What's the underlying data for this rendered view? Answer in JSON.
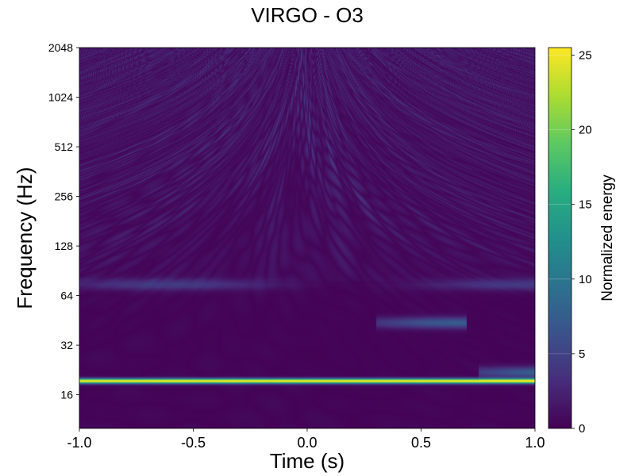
{
  "chart_data": {
    "type": "heatmap",
    "title": "VIRGO - O3",
    "xlabel": "Time (s)",
    "ylabel": "Frequency (Hz)",
    "xlim": [
      -1.0,
      1.0
    ],
    "ylim": [
      10,
      2048
    ],
    "yscale": "log2",
    "x_ticks": [
      -1.0,
      -0.5,
      0.0,
      0.5,
      1.0
    ],
    "x_tick_labels": [
      "-1.0",
      "-0.5",
      "0.0",
      "0.5",
      "1.0"
    ],
    "y_ticks": [
      16,
      32,
      64,
      128,
      256,
      512,
      1024,
      2048
    ],
    "y_tick_labels": [
      "16",
      "32",
      "64",
      "128",
      "256",
      "512",
      "1024",
      "2048"
    ],
    "colorbar": {
      "label": "Normalized energy",
      "range": [
        0,
        25.5
      ],
      "ticks": [
        0,
        5,
        10,
        15,
        20,
        25
      ],
      "tick_labels": [
        "0",
        "5",
        "10",
        "15",
        "20",
        "25"
      ],
      "colormap": "viridis"
    },
    "grid": false,
    "features": [
      {
        "description": "persistent narrow line",
        "frequency_hz": 19.5,
        "time_range": [
          -1.0,
          1.0
        ],
        "energy": 25
      },
      {
        "description": "moderate band",
        "frequency_hz": 22,
        "time_range": [
          0.75,
          1.0
        ],
        "energy": 8
      },
      {
        "description": "moderate blob",
        "frequency_hz": 44,
        "time_range": [
          0.3,
          0.7
        ],
        "energy": 7
      },
      {
        "description": "weak band",
        "frequency_hz": 75,
        "time_range": [
          -1.0,
          1.0
        ],
        "energy": 4
      },
      {
        "description": "background noise",
        "frequency_range": [
          128,
          2048
        ],
        "time_range": [
          -1.0,
          1.0
        ],
        "energy": 3
      }
    ]
  }
}
